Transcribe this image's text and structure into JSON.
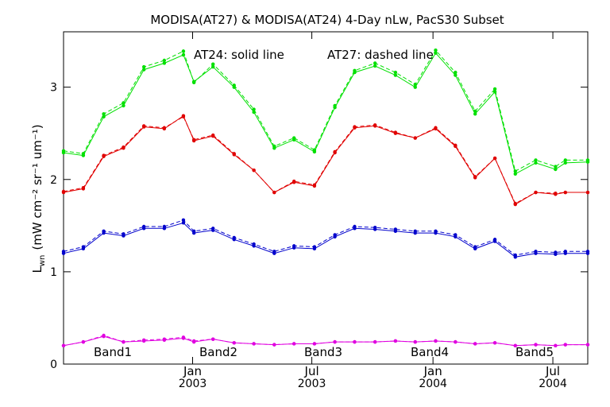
{
  "chart_data": {
    "type": "line",
    "title": "MODISA(AT27) & MODISA(AT24) 4-Day nLw, PacS30 Subset",
    "ylabel": "L_wn (mW cm^-2 sr^-1 um^-1)",
    "ylabel_main": "L",
    "ylabel_sub": "wn",
    "ylabel_units": "(mW cm⁻² sr⁻¹ um⁻¹)",
    "xlabel": "",
    "annotation_solid": "AT24: solid line",
    "annotation_dashed": "AT27: dashed line",
    "ylim": [
      0,
      3.6
    ],
    "xlim": [
      "2002-06-19",
      "2004-08-23"
    ],
    "y_ticks": [
      "0",
      "1",
      "2",
      "3"
    ],
    "y_tick_values": [
      0,
      1,
      2,
      3
    ],
    "x_ticks": [
      {
        "date": "2003-01-01",
        "month": "Jan",
        "year": "2003"
      },
      {
        "date": "2003-07-01",
        "month": "Jul",
        "year": "2003"
      },
      {
        "date": "2004-01-01",
        "month": "Jan",
        "year": "2004"
      },
      {
        "date": "2004-07-01",
        "month": "Jul",
        "year": "2004"
      }
    ],
    "x": [
      "2002-06-19",
      "2002-07-19",
      "2002-08-19",
      "2002-09-18",
      "2002-10-19",
      "2002-11-19",
      "2002-12-18",
      "2003-01-03",
      "2003-02-01",
      "2003-03-05",
      "2003-04-04",
      "2003-05-05",
      "2003-06-04",
      "2003-07-05",
      "2003-08-05",
      "2003-09-04",
      "2003-10-05",
      "2003-11-05",
      "2003-12-05",
      "2004-01-05",
      "2004-02-04",
      "2004-03-05",
      "2004-04-04",
      "2004-05-05",
      "2004-06-05",
      "2004-07-05",
      "2004-07-20",
      "2004-08-23"
    ],
    "series": [
      {
        "name": "Band1",
        "color": "#00e000",
        "solid": [
          2.29,
          2.26,
          2.68,
          2.8,
          3.19,
          3.26,
          3.35,
          3.06,
          3.22,
          3.0,
          2.73,
          2.34,
          2.43,
          2.3,
          2.78,
          3.16,
          3.23,
          3.13,
          3.0,
          3.37,
          3.13,
          2.71,
          2.95,
          2.06,
          2.18,
          2.11,
          2.18,
          2.19
        ],
        "dashed": [
          2.31,
          2.28,
          2.71,
          2.83,
          3.22,
          3.29,
          3.39,
          3.05,
          3.25,
          3.02,
          2.76,
          2.36,
          2.45,
          2.32,
          2.8,
          3.18,
          3.26,
          3.16,
          3.03,
          3.4,
          3.16,
          2.74,
          2.98,
          2.09,
          2.21,
          2.14,
          2.21,
          2.21
        ]
      },
      {
        "name": "Band2",
        "color": "#e00000",
        "solid": [
          1.86,
          1.9,
          2.25,
          2.34,
          2.57,
          2.55,
          2.69,
          2.42,
          2.47,
          2.27,
          2.1,
          1.86,
          1.97,
          1.93,
          2.29,
          2.56,
          2.58,
          2.5,
          2.45,
          2.55,
          2.36,
          2.02,
          2.23,
          1.73,
          1.86,
          1.84,
          1.86,
          1.86
        ],
        "dashed": [
          1.87,
          1.91,
          2.26,
          2.35,
          2.58,
          2.56,
          2.68,
          2.43,
          2.48,
          2.28,
          2.1,
          1.86,
          1.98,
          1.94,
          2.3,
          2.57,
          2.59,
          2.51,
          2.45,
          2.56,
          2.37,
          2.03,
          2.23,
          1.74,
          1.86,
          1.85,
          1.86,
          1.86
        ]
      },
      {
        "name": "Band3",
        "color": "#0000cc",
        "solid": [
          1.2,
          1.25,
          1.42,
          1.39,
          1.47,
          1.47,
          1.53,
          1.42,
          1.45,
          1.35,
          1.28,
          1.2,
          1.26,
          1.25,
          1.38,
          1.47,
          1.46,
          1.44,
          1.42,
          1.42,
          1.38,
          1.25,
          1.33,
          1.16,
          1.2,
          1.19,
          1.2,
          1.2
        ],
        "dashed": [
          1.22,
          1.27,
          1.44,
          1.41,
          1.49,
          1.49,
          1.56,
          1.44,
          1.47,
          1.37,
          1.3,
          1.22,
          1.28,
          1.27,
          1.4,
          1.49,
          1.48,
          1.46,
          1.44,
          1.44,
          1.4,
          1.27,
          1.35,
          1.18,
          1.22,
          1.21,
          1.22,
          1.22
        ]
      },
      {
        "name": "Band4",
        "color": "#aaaaaa",
        "solid": [],
        "dashed": []
      },
      {
        "name": "Band5",
        "color": "#e000e0",
        "solid": [
          0.2,
          0.24,
          0.3,
          0.24,
          0.25,
          0.26,
          0.28,
          0.24,
          0.27,
          0.23,
          0.22,
          0.21,
          0.22,
          0.22,
          0.24,
          0.24,
          0.24,
          0.25,
          0.24,
          0.25,
          0.24,
          0.22,
          0.23,
          0.2,
          0.21,
          0.2,
          0.21,
          0.21
        ],
        "dashed": [
          0.2,
          0.24,
          0.31,
          0.24,
          0.26,
          0.27,
          0.29,
          0.25,
          0.27,
          0.23,
          0.22,
          0.21,
          0.22,
          0.22,
          0.24,
          0.24,
          0.24,
          0.25,
          0.24,
          0.25,
          0.24,
          0.22,
          0.23,
          0.2,
          0.21,
          0.2,
          0.21,
          0.21
        ]
      }
    ],
    "grid": false,
    "legend": "bottom"
  }
}
